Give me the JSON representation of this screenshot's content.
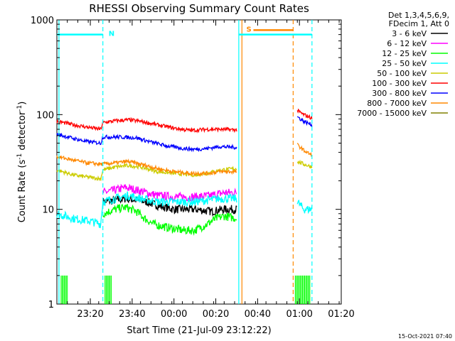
{
  "chart_data": {
    "type": "line",
    "title": "RHESSI Observing Summary Count Rates",
    "xlabel": "Start Time (21-Jul-09 23:12:22)",
    "ylabel_main": "Count Rate (s",
    "ylabel_sup1": "-1",
    "ylabel_mid": " detector",
    "ylabel_sup2": "-1",
    "ylabel_end": ")",
    "y_scale": "log",
    "ylim": [
      1,
      1000
    ],
    "xlim_min": [
      -8,
      128
    ],
    "x_tick_minutes": [
      8,
      28,
      48,
      68,
      88,
      108,
      128
    ],
    "x_tick_labels": [
      "23:20",
      "23:40",
      "00:00",
      "00:20",
      "00:40",
      "01:00",
      "01:20"
    ],
    "y_tick_values": [
      1,
      10,
      100,
      1000
    ],
    "y_tick_labels": [
      "1",
      "10",
      "100",
      "1000"
    ],
    "legend_header": [
      "Det 1,3,4,5,6,9,",
      "FDecim 1, Att 0"
    ],
    "legend_position": "right",
    "timestamp": "15-Oct-2021 07:40",
    "series": [
      {
        "name": "3 - 6 keV",
        "color": "#000000",
        "points": [
          [
            14,
            12
          ],
          [
            20,
            12.5
          ],
          [
            25,
            13
          ],
          [
            30,
            12.5
          ],
          [
            35,
            12
          ],
          [
            40,
            11
          ],
          [
            48,
            10
          ],
          [
            58,
            10
          ],
          [
            66,
            9.5
          ],
          [
            72,
            10
          ],
          [
            78,
            10
          ]
        ]
      },
      {
        "name": "6 - 12 keV",
        "color": "#ff00ff",
        "points": [
          [
            14,
            15
          ],
          [
            20,
            16
          ],
          [
            25,
            17
          ],
          [
            30,
            16
          ],
          [
            35,
            15
          ],
          [
            40,
            14
          ],
          [
            48,
            13.5
          ],
          [
            58,
            13.5
          ],
          [
            66,
            14
          ],
          [
            72,
            15
          ],
          [
            78,
            15
          ]
        ]
      },
      {
        "name": "12 - 25 keV",
        "color": "#00ff00",
        "points": [
          [
            14,
            9
          ],
          [
            20,
            10
          ],
          [
            25,
            10.5
          ],
          [
            30,
            9.5
          ],
          [
            34,
            8
          ],
          [
            38,
            7
          ],
          [
            44,
            6.5
          ],
          [
            52,
            6
          ],
          [
            58,
            6
          ],
          [
            64,
            7
          ],
          [
            68,
            8
          ],
          [
            72,
            8.5
          ],
          [
            78,
            8
          ]
        ]
      },
      {
        "name": "25 - 50 keV",
        "color": "#00ffff",
        "points": [
          [
            -8,
            9
          ],
          [
            0,
            8
          ],
          [
            8,
            7.5
          ],
          [
            13,
            7
          ],
          [
            14,
            12
          ],
          [
            20,
            13
          ],
          [
            26,
            14
          ],
          [
            32,
            13
          ],
          [
            40,
            12
          ],
          [
            48,
            12
          ],
          [
            58,
            12
          ],
          [
            64,
            12.5
          ],
          [
            70,
            13
          ],
          [
            78,
            13
          ]
        ],
        "points_b": [
          [
            107,
            12
          ],
          [
            110,
            10
          ],
          [
            114,
            10
          ]
        ]
      },
      {
        "name": "50 - 100 keV",
        "color": "#cccc00",
        "points": [
          [
            -8,
            26
          ],
          [
            0,
            23
          ],
          [
            6,
            22
          ],
          [
            13,
            21
          ],
          [
            14,
            26
          ],
          [
            20,
            28
          ],
          [
            26,
            29
          ],
          [
            32,
            28
          ],
          [
            40,
            25
          ],
          [
            48,
            24
          ],
          [
            58,
            23
          ],
          [
            64,
            24
          ],
          [
            70,
            26
          ],
          [
            78,
            27
          ]
        ],
        "points_b": [
          [
            107,
            32
          ],
          [
            110,
            30
          ],
          [
            114,
            28
          ]
        ]
      },
      {
        "name": "100 - 300 keV",
        "color": "#ff0000",
        "points": [
          [
            -8,
            85
          ],
          [
            0,
            78
          ],
          [
            6,
            74
          ],
          [
            13,
            70
          ],
          [
            14,
            82
          ],
          [
            20,
            86
          ],
          [
            26,
            88
          ],
          [
            32,
            85
          ],
          [
            40,
            78
          ],
          [
            48,
            72
          ],
          [
            56,
            68
          ],
          [
            64,
            70
          ],
          [
            70,
            70
          ],
          [
            78,
            69
          ]
        ],
        "points_b": [
          [
            107,
            110
          ],
          [
            110,
            100
          ],
          [
            114,
            92
          ]
        ]
      },
      {
        "name": "300 - 800 keV",
        "color": "#0000ff",
        "points": [
          [
            -8,
            62
          ],
          [
            0,
            56
          ],
          [
            6,
            52
          ],
          [
            13,
            50
          ],
          [
            14,
            58
          ],
          [
            22,
            58
          ],
          [
            30,
            57
          ],
          [
            36,
            52
          ],
          [
            44,
            47
          ],
          [
            52,
            44
          ],
          [
            58,
            43
          ],
          [
            64,
            44
          ],
          [
            70,
            46
          ],
          [
            78,
            45
          ]
        ],
        "points_b": [
          [
            107,
            95
          ],
          [
            110,
            85
          ],
          [
            114,
            78
          ]
        ]
      },
      {
        "name": "800 - 7000 keV",
        "color": "#ff8800",
        "points": [
          [
            -8,
            36
          ],
          [
            0,
            33
          ],
          [
            6,
            31
          ],
          [
            13,
            30
          ],
          [
            14,
            30
          ],
          [
            20,
            31
          ],
          [
            26,
            32
          ],
          [
            32,
            30
          ],
          [
            40,
            27
          ],
          [
            48,
            25
          ],
          [
            56,
            24
          ],
          [
            64,
            24
          ],
          [
            70,
            25
          ],
          [
            78,
            25
          ]
        ],
        "points_b": [
          [
            107,
            48
          ],
          [
            110,
            42
          ],
          [
            114,
            37
          ]
        ]
      },
      {
        "name": "7000 - 15000 keV",
        "color": "#808000",
        "points": []
      }
    ],
    "annotations": [
      {
        "label": "N",
        "color": "#00ffff",
        "x_range": [
          -8,
          14
        ],
        "y": 700
      },
      {
        "label": "S",
        "color": "#ff8800",
        "x_range": [
          86,
          105
        ],
        "y": 780
      },
      {
        "label": "",
        "color": "#00ffff",
        "x_range": [
          79,
          114
        ],
        "y": 700
      }
    ],
    "vertical_markers": [
      {
        "x": -7,
        "color": "#00ffff",
        "dashed": false
      },
      {
        "x": 14,
        "color": "#00ffff",
        "dashed": true
      },
      {
        "x": 79,
        "color": "#00ffff",
        "dashed": false
      },
      {
        "x": 80.5,
        "color": "#ff8800",
        "dashed": false
      },
      {
        "x": 105,
        "color": "#ff8800",
        "dashed": true
      },
      {
        "x": 114,
        "color": "#00ffff",
        "dashed": true
      }
    ]
  }
}
